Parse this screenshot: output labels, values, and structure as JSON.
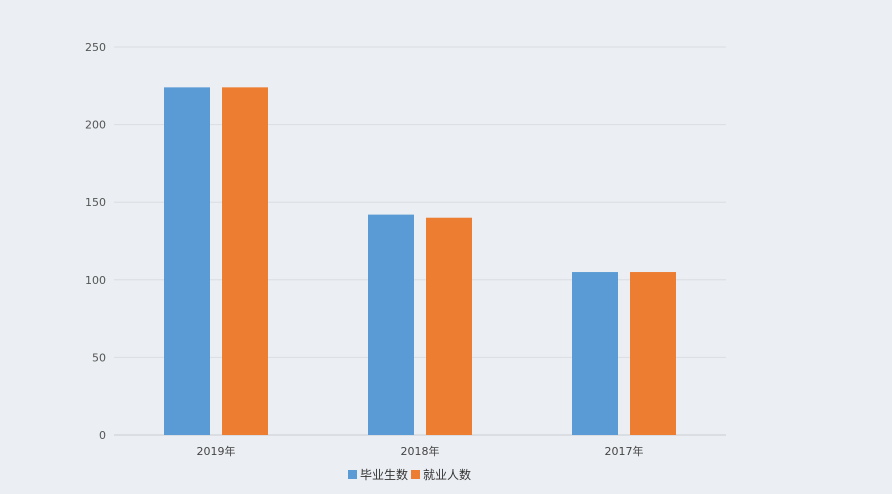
{
  "chart_data": {
    "type": "bar",
    "categories": [
      "2019年",
      "2018年",
      "2017年"
    ],
    "series": [
      {
        "name": "毕业生数",
        "values": [
          224,
          142,
          105
        ],
        "color": "#5b9bd5"
      },
      {
        "name": "就业人数",
        "values": [
          224,
          140,
          105
        ],
        "color": "#ed7d31"
      }
    ],
    "ylim": [
      0,
      250
    ],
    "yticks": [
      0,
      50,
      100,
      150,
      200,
      250
    ],
    "grid": true,
    "legend_position": "bottom-center"
  }
}
